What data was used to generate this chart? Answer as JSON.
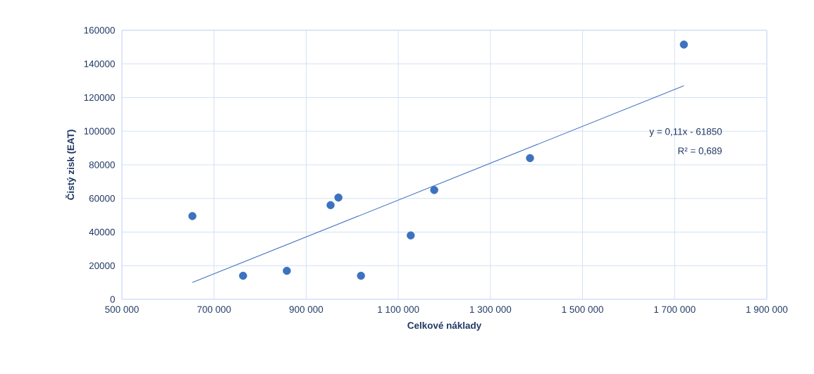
{
  "chart_data": {
    "type": "scatter",
    "xlabel": "Celkové náklady",
    "ylabel": "Čistý zisk (EAT)",
    "xlim": [
      500000,
      1900000
    ],
    "ylim": [
      0,
      160000
    ],
    "xticks": [
      {
        "value": 500000,
        "label": "500 000"
      },
      {
        "value": 700000,
        "label": "700 000"
      },
      {
        "value": 900000,
        "label": "900 000"
      },
      {
        "value": 1100000,
        "label": "1 100 000"
      },
      {
        "value": 1300000,
        "label": "1 300 000"
      },
      {
        "value": 1500000,
        "label": "1 500 000"
      },
      {
        "value": 1700000,
        "label": "1 700 000"
      },
      {
        "value": 1900000,
        "label": "1 900 000"
      }
    ],
    "yticks": [
      0,
      20000,
      40000,
      60000,
      80000,
      100000,
      120000,
      140000,
      160000
    ],
    "grid": true,
    "annotations": [
      "y = 0,11x - 61850",
      "R² = 0,689"
    ],
    "series": [
      {
        "type": "scatter",
        "marker": "circle",
        "color": "#3c72bf",
        "x": [
          653000,
          763000,
          858000,
          953000,
          970000,
          1019000,
          1127000,
          1178000,
          1386000,
          1720000
        ],
        "values": [
          49500,
          14000,
          17000,
          56000,
          60500,
          14000,
          38000,
          65000,
          84000,
          151500
        ]
      },
      {
        "type": "line",
        "marker": "none",
        "color": "#4472c4",
        "x": [
          653000,
          1720000
        ],
        "values": [
          10000,
          127000
        ]
      }
    ]
  }
}
